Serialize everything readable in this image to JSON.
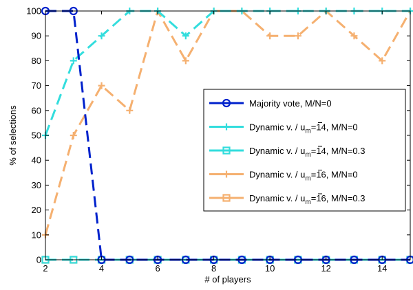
{
  "chart_data": {
    "type": "line",
    "title": "",
    "xlabel": "# of players",
    "ylabel": "% of selections",
    "xlim": [
      2,
      15
    ],
    "ylim": [
      0,
      100
    ],
    "xticks": [
      2,
      4,
      6,
      8,
      10,
      12,
      14
    ],
    "yticks": [
      0,
      10,
      20,
      30,
      40,
      50,
      60,
      70,
      80,
      90,
      100
    ],
    "grid": false,
    "legend_position": "center-right",
    "x": [
      2,
      3,
      4,
      5,
      6,
      7,
      8,
      9,
      10,
      11,
      12,
      13,
      14,
      15
    ],
    "series": [
      {
        "name": "Majority vote, M/N=0",
        "color": "#0022cc",
        "marker": "circle",
        "values": [
          100,
          100,
          0,
          0,
          0,
          0,
          0,
          0,
          0,
          0,
          0,
          0,
          0,
          0
        ]
      },
      {
        "name": "Dynamic v. / u̅m=14, M/N=0",
        "legend_parts": {
          "prefix": "Dynamic v. / u",
          "sub": "m",
          "suffix": "=14, M/N=0"
        },
        "color": "#33dddd",
        "marker": "plus",
        "values": [
          50,
          80,
          90,
          100,
          100,
          90,
          100,
          100,
          100,
          100,
          100,
          100,
          100,
          100
        ]
      },
      {
        "name": "Dynamic v. / u̅m=14, M/N=0.3",
        "legend_parts": {
          "prefix": "Dynamic v. / u",
          "sub": "m",
          "suffix": "=14, M/N=0.3"
        },
        "color": "#33dddd",
        "marker": "square",
        "values": [
          0,
          0,
          0,
          0,
          0,
          0,
          0,
          0,
          0,
          0,
          0,
          0,
          0,
          0
        ]
      },
      {
        "name": "Dynamic v. / u̅m=16, M/N=0",
        "legend_parts": {
          "prefix": "Dynamic v. / u",
          "sub": "m",
          "suffix": "=16, M/N=0"
        },
        "color": "#f5b070",
        "marker": "plus",
        "values": [
          10,
          50,
          70,
          60,
          100,
          80,
          100,
          100,
          90,
          90,
          100,
          90,
          80,
          100
        ]
      },
      {
        "name": "Dynamic v. / u̅m=16, M/N=0.3",
        "legend_parts": {
          "prefix": "Dynamic v. / u",
          "sub": "m",
          "suffix": "=16, M/N=0.3"
        },
        "color": "#f5b070",
        "marker": "square",
        "values": [
          0,
          0,
          0,
          0,
          0,
          0,
          0,
          0,
          0,
          0,
          0,
          0,
          0,
          0
        ]
      }
    ]
  }
}
